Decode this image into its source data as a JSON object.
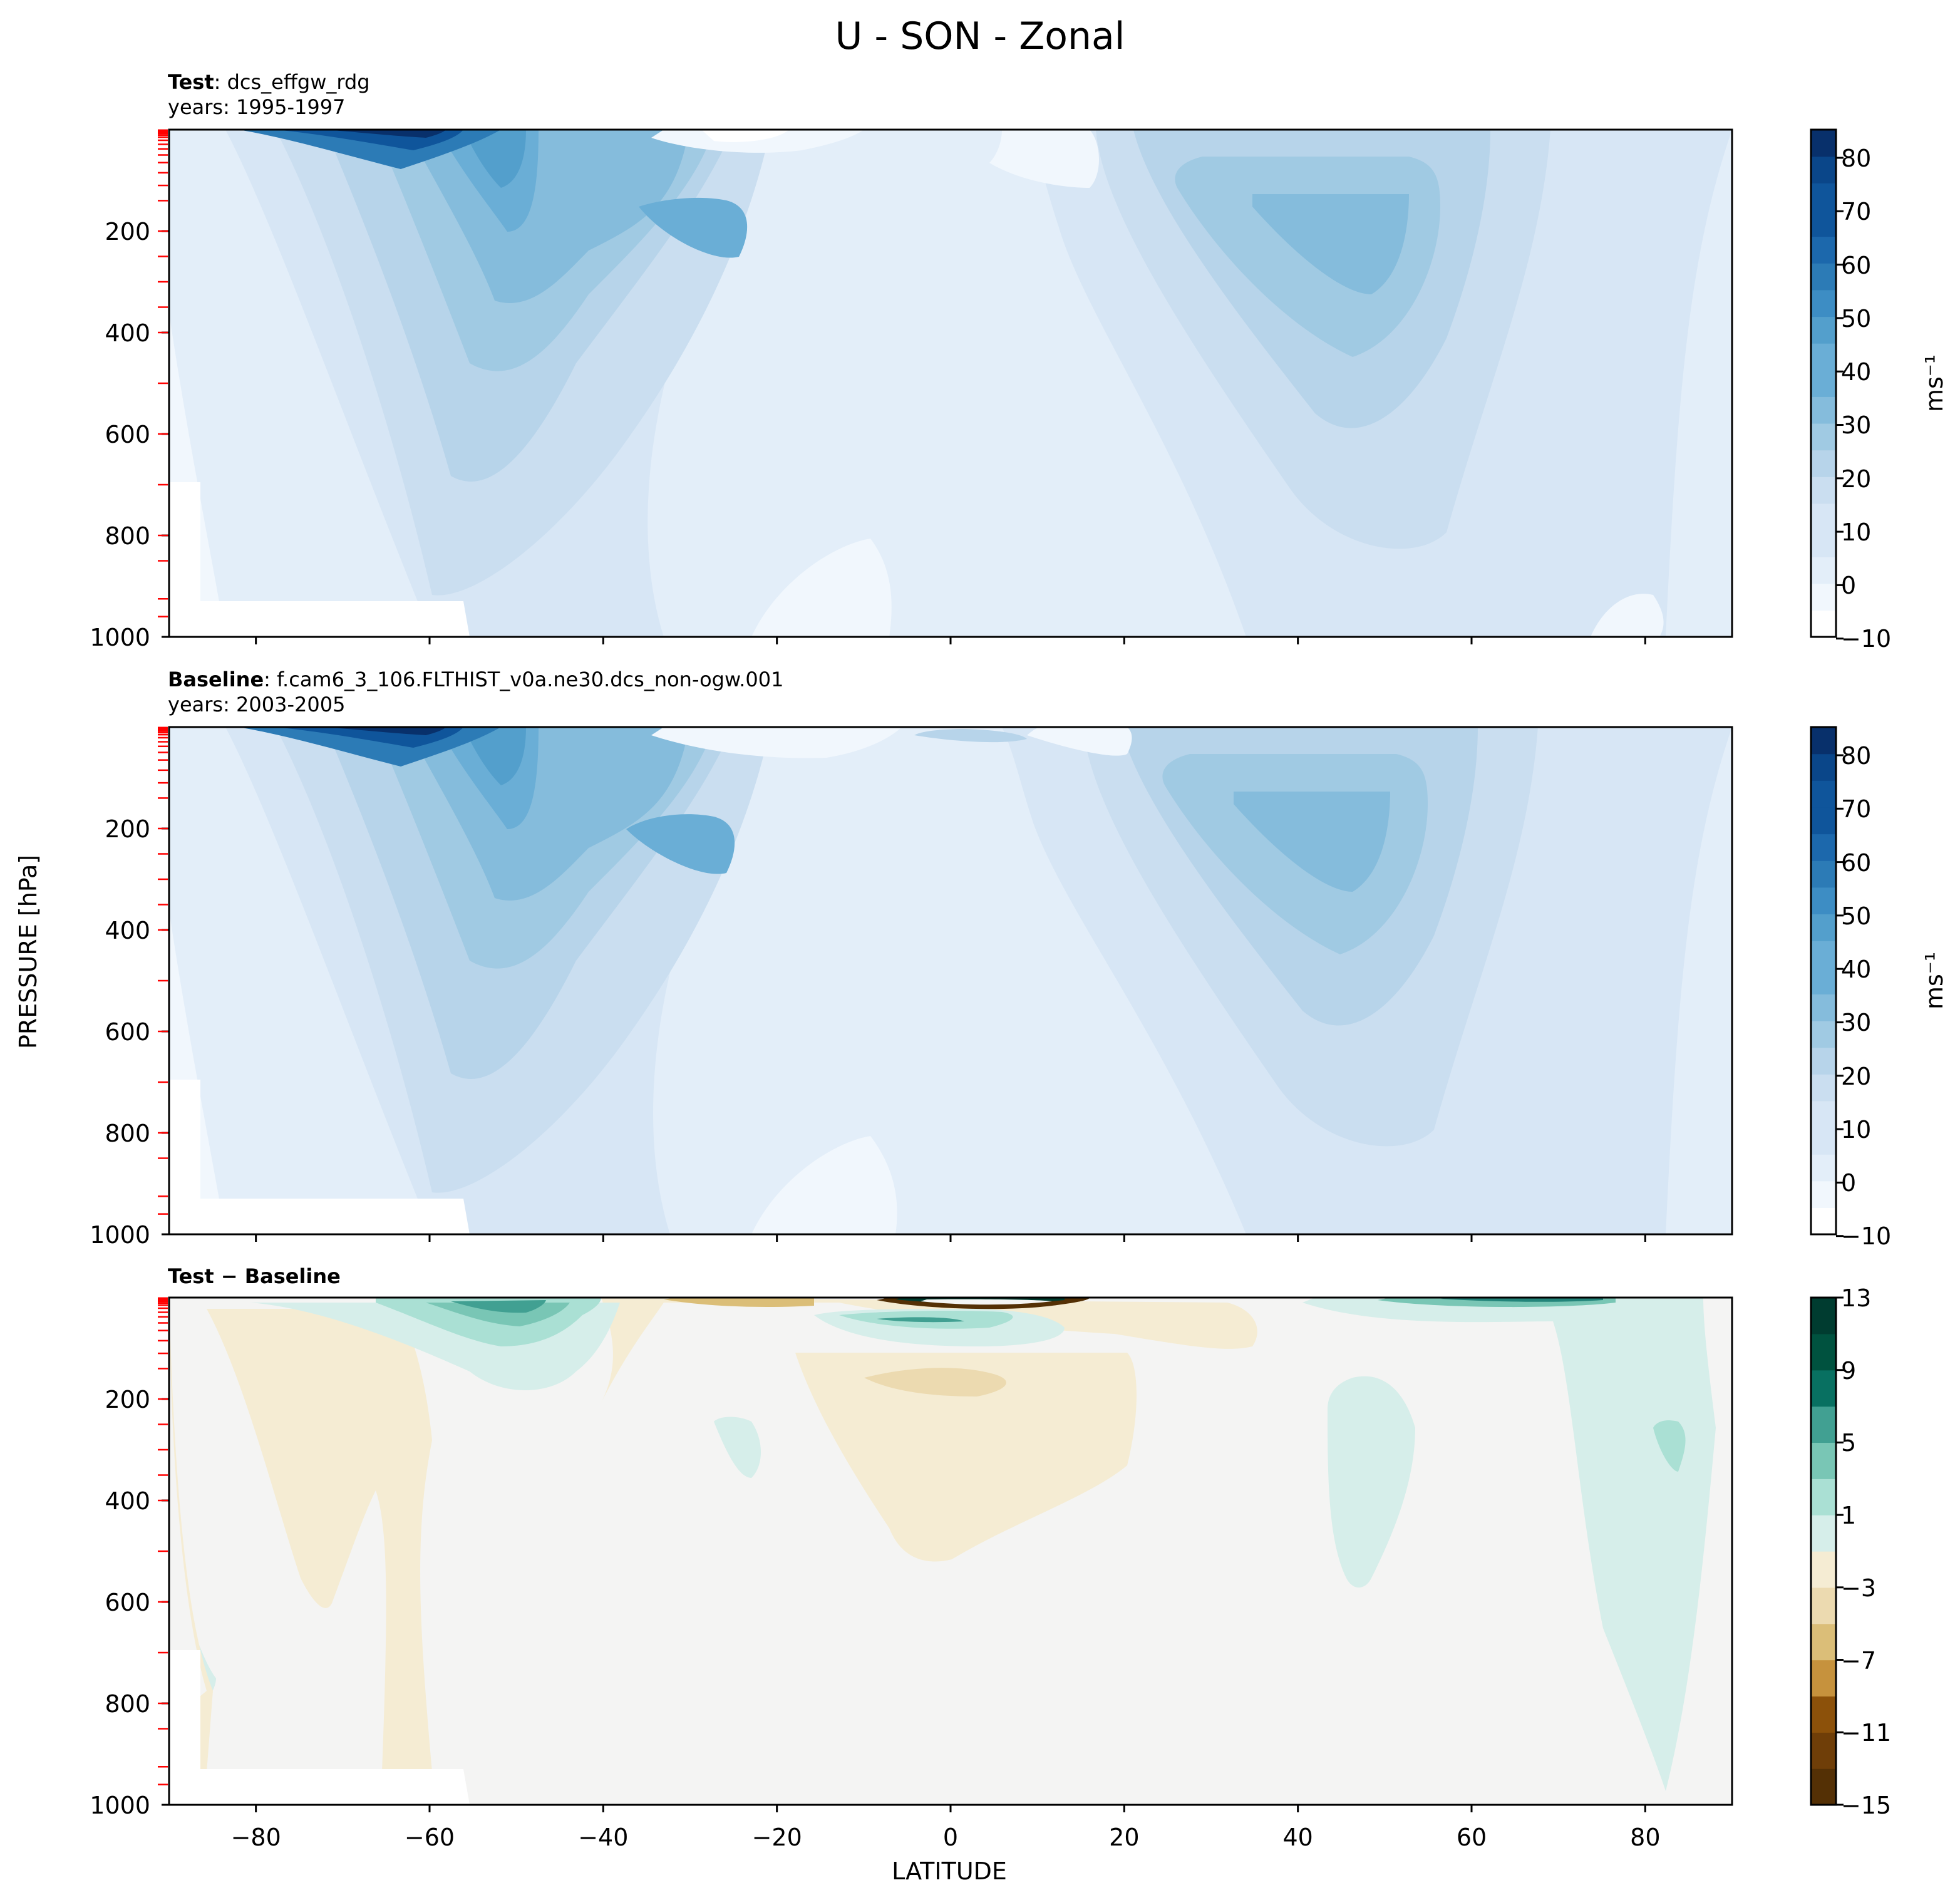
{
  "figure": {
    "title": "U - SON - Zonal",
    "xlabel": "LATITUDE",
    "ylabel": "PRESSURE [hPa]"
  },
  "colors": {
    "blues": [
      "#ffffff",
      "#f1f7fd",
      "#e3eef9",
      "#d7e6f5",
      "#cadef0",
      "#b7d4ea",
      "#a0cae3",
      "#85bcdc",
      "#6aaed6",
      "#539fcc",
      "#3d8dc4",
      "#2c7bb6",
      "#1c68ac",
      "#0f559b",
      "#0a4689",
      "#08306b"
    ],
    "diverging": [
      "#543005",
      "#6f3e08",
      "#8c510a",
      "#a9701f",
      "#c6923d",
      "#dbbe78",
      "#ecdab0",
      "#f5ecd3",
      "#f4f4f3",
      "#d6eeea",
      "#aae0d4",
      "#79c6b5",
      "#41a092",
      "#23847a",
      "#087061",
      "#00523f",
      "#003c30"
    ],
    "tick_marks": "#ff0000"
  },
  "panels": [
    {
      "id": "test",
      "label_bold": "Test",
      "label_rest": ": dcs_effgw_rdg",
      "years": "years: 1995-1997",
      "colorbar": {
        "ticks": [
          "80",
          "70",
          "60",
          "50",
          "40",
          "30",
          "20",
          "10",
          "0",
          "−10"
        ],
        "unit": "ms⁻¹"
      }
    },
    {
      "id": "baseline",
      "label_bold": "Baseline",
      "label_rest": ": f.cam6_3_106.FLTHIST_v0a.ne30.dcs_non-ogw.001",
      "years": "years: 2003-2005",
      "colorbar": {
        "ticks": [
          "80",
          "70",
          "60",
          "50",
          "40",
          "30",
          "20",
          "10",
          "0",
          "−10"
        ],
        "unit": "ms⁻¹"
      }
    },
    {
      "id": "diff",
      "label_bold": "Test − Baseline",
      "label_rest": "",
      "years": "",
      "colorbar": {
        "ticks": [
          "13",
          "9",
          "5",
          "1",
          "−3",
          "−7",
          "−11",
          "−15"
        ],
        "unit": ""
      }
    }
  ],
  "chart_data": [
    {
      "type": "heatmap",
      "title": "Test : dcs_effgw_rdg",
      "xlabel": "LATITUDE",
      "ylabel": "PRESSURE [hPa]",
      "xlim": [
        -90,
        90
      ],
      "ylim": [
        1000,
        0
      ],
      "x_ticks": [
        "−80",
        "−60",
        "−40",
        "−20",
        "0",
        "20",
        "40",
        "60",
        "80"
      ],
      "y_ticks": [
        "200",
        "400",
        "600",
        "800",
        "1000"
      ],
      "levels": [
        -10,
        -5,
        0,
        5,
        10,
        15,
        20,
        25,
        30,
        35,
        40,
        45,
        50,
        55,
        60,
        65,
        70,
        75,
        80,
        85
      ],
      "features": [
        {
          "name": "SH polar stratospheric jet",
          "lat": -60,
          "pressure": 5,
          "value": 85
        },
        {
          "name": "SH subtropical jet",
          "lat": -30,
          "pressure": 200,
          "value": 40
        },
        {
          "name": "NH subtropical jet",
          "lat": 45,
          "pressure": 200,
          "value": 33
        },
        {
          "name": "tropical easterlies",
          "lat": -20,
          "pressure": 40,
          "value": -10
        }
      ]
    },
    {
      "type": "heatmap",
      "title": "Baseline : f.cam6_3_106.FLTHIST_v0a.ne30.dcs_non-ogw.001",
      "xlabel": "LATITUDE",
      "ylabel": "PRESSURE [hPa]",
      "xlim": [
        -90,
        90
      ],
      "ylim": [
        1000,
        0
      ],
      "x_ticks": [
        "−80",
        "−60",
        "−40",
        "−20",
        "0",
        "20",
        "40",
        "60",
        "80"
      ],
      "y_ticks": [
        "200",
        "400",
        "600",
        "800",
        "1000"
      ],
      "levels": [
        -10,
        -5,
        0,
        5,
        10,
        15,
        20,
        25,
        30,
        35,
        40,
        45,
        50,
        55,
        60,
        65,
        70,
        75,
        80,
        85
      ],
      "features": [
        {
          "name": "SH polar stratospheric jet",
          "lat": -60,
          "pressure": 5,
          "value": 85
        },
        {
          "name": "SH subtropical jet",
          "lat": -32,
          "pressure": 200,
          "value": 40
        },
        {
          "name": "NH subtropical jet",
          "lat": 40,
          "pressure": 220,
          "value": 33
        }
      ]
    },
    {
      "type": "heatmap",
      "title": "Test − Baseline",
      "xlabel": "LATITUDE",
      "ylabel": "PRESSURE [hPa]",
      "xlim": [
        -90,
        90
      ],
      "ylim": [
        1000,
        0
      ],
      "x_ticks": [
        "−80",
        "−60",
        "−40",
        "−20",
        "0",
        "20",
        "40",
        "60",
        "80"
      ],
      "y_ticks": [
        "200",
        "400",
        "600",
        "800",
        "1000"
      ],
      "levels": [
        -15,
        -13,
        -11,
        -9,
        -7,
        -5,
        -3,
        -1,
        1,
        3,
        5,
        7,
        9,
        11,
        13
      ],
      "features": [
        {
          "name": "SH high-latitude positive anomaly",
          "lat": -52,
          "pressure": 10,
          "value": 13
        },
        {
          "name": "equatorial upper negative anomaly",
          "lat": 0,
          "pressure": 10,
          "value": -15
        },
        {
          "name": "NH high-latitude positive anomaly",
          "lat": 65,
          "pressure": 5,
          "value": 13
        },
        {
          "name": "tropical mid negative anomaly",
          "lat": -5,
          "pressure": 150,
          "value": -3
        },
        {
          "name": "NH polar positive anomaly",
          "lat": 82,
          "pressure": 300,
          "value": 5
        }
      ]
    }
  ]
}
